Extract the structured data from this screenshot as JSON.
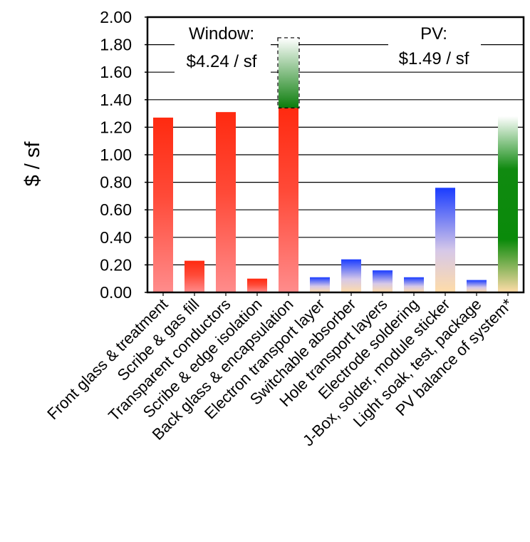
{
  "chart_data": {
    "type": "bar",
    "ylabel": "$ / sf",
    "ylim": [
      0,
      2.0
    ],
    "yticks": [
      "0.00",
      "0.20",
      "0.40",
      "0.60",
      "0.80",
      "1.00",
      "1.20",
      "1.40",
      "1.60",
      "1.80",
      "2.00"
    ],
    "grid": true,
    "categories": [
      "Front glass & treatment",
      "Scribe & gas fill",
      "Transparent conductors",
      "Scribe & edge isolation",
      "Back glass & encapsulation",
      "Electron transport layer",
      "Switchable absorber",
      "Hole transport layers",
      "Electrode soldering",
      "J-Box, solder, module sticker",
      "Light soak, test, package",
      "PV balance of system*"
    ],
    "values": [
      1.27,
      0.23,
      1.31,
      0.1,
      1.34,
      0.11,
      0.24,
      0.16,
      0.11,
      0.76,
      0.09,
      1.28
    ],
    "groups": [
      {
        "label": "Window:",
        "value_label": "$4.24 / sf"
      },
      {
        "label": "PV:",
        "value_label": "$1.49 / sf"
      }
    ],
    "window_pv_bar_extension": {
      "category": "Back glass & encapsulation",
      "from": 1.34,
      "to": 1.85
    },
    "colors": {
      "window": "#ff2a10",
      "pv": "#1a3cff",
      "bos": "#008000",
      "base": "#ffd9a8"
    }
  }
}
